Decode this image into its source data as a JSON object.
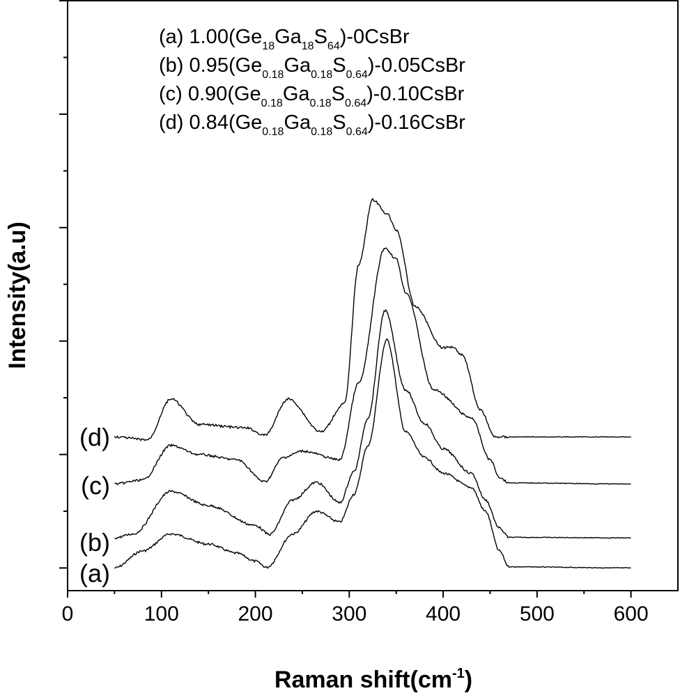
{
  "chart_data": {
    "type": "line",
    "title": "",
    "xlabel": "Raman shift(cm",
    "xlabel_sup": "-1",
    "xlabel_end": ")",
    "ylabel": "Intensity(a.u)",
    "xlim": [
      0,
      650
    ],
    "ylim": [
      -0.4,
      10.0
    ],
    "xticks": [
      0,
      100,
      200,
      300,
      400,
      500,
      600
    ],
    "xtick_labels": [
      "0",
      "100",
      "200",
      "300",
      "400",
      "500",
      "600"
    ],
    "yticks_major": [
      0,
      2,
      4,
      6,
      8,
      10
    ],
    "yticks_minor": [
      1,
      3,
      5,
      7,
      9
    ],
    "ytick_labels_shown": false,
    "grid": false,
    "legend_position": "top-center",
    "legend": [
      {
        "id": "a",
        "parts": [
          [
            "t",
            "(a) 1.00(Ge"
          ],
          [
            "s",
            "18"
          ],
          [
            "t",
            "Ga"
          ],
          [
            "s",
            "18"
          ],
          [
            "t",
            "S"
          ],
          [
            "s",
            "64"
          ],
          [
            "t",
            ")-0CsBr"
          ]
        ]
      },
      {
        "id": "b",
        "parts": [
          [
            "t",
            "(b) 0.95(Ge"
          ],
          [
            "s",
            "0.18"
          ],
          [
            "t",
            "Ga"
          ],
          [
            "s",
            "0.18"
          ],
          [
            "t",
            "S"
          ],
          [
            "s",
            "0.64"
          ],
          [
            "t",
            ")-0.05CsBr"
          ]
        ]
      },
      {
        "id": "c",
        "parts": [
          [
            "t",
            "(c) 0.90(Ge"
          ],
          [
            "s",
            "0.18"
          ],
          [
            "t",
            "Ga"
          ],
          [
            "s",
            "0.18"
          ],
          [
            "t",
            "S"
          ],
          [
            "s",
            "0.64"
          ],
          [
            "t",
            ")-0.10CsBr"
          ]
        ]
      },
      {
        "id": "d",
        "parts": [
          [
            "t",
            "(d) 0.84(Ge"
          ],
          [
            "s",
            "0.18"
          ],
          [
            "t",
            "Ga"
          ],
          [
            "s",
            "0.18"
          ],
          [
            "t",
            "S"
          ],
          [
            "s",
            "0.64"
          ],
          [
            "t",
            ")-0.16CsBr"
          ]
        ]
      }
    ],
    "series": [
      {
        "name": "(a)",
        "label_y": -0.1,
        "x": [
          50,
          80,
          110,
          150,
          180,
          200,
          212,
          240,
          265,
          290,
          305,
          320,
          340,
          360,
          380,
          400,
          430,
          445,
          460,
          470,
          600
        ],
        "y": [
          0,
          0.3,
          0.6,
          0.42,
          0.26,
          0.12,
          0.01,
          0.6,
          1.0,
          0.81,
          1.3,
          2.16,
          4.02,
          2.4,
          1.95,
          1.67,
          1.42,
          1.0,
          0.3,
          0.02,
          0
        ]
      },
      {
        "name": "(b)",
        "label_y": 0.45,
        "x": [
          50,
          70,
          110,
          150,
          200,
          215,
          240,
          265,
          290,
          305,
          320,
          338,
          360,
          380,
          400,
          430,
          445,
          460,
          470,
          600
        ],
        "y": [
          0.53,
          0.6,
          1.35,
          1.1,
          0.75,
          0.59,
          1.2,
          1.51,
          1.15,
          1.7,
          2.65,
          4.54,
          3.14,
          2.55,
          2.1,
          1.67,
          1.2,
          0.7,
          0.54,
          0.53
        ]
      },
      {
        "name": "(c)",
        "label_y": 1.45,
        "x": [
          50,
          80,
          110,
          140,
          180,
          210,
          230,
          250,
          290,
          310,
          338,
          350,
          360,
          390,
          430,
          450,
          460,
          470,
          600
        ],
        "y": [
          1.48,
          1.55,
          2.16,
          2.0,
          1.91,
          1.52,
          1.95,
          2.06,
          1.91,
          3.26,
          5.64,
          5.45,
          4.86,
          3.14,
          2.65,
          1.91,
          1.6,
          1.5,
          1.48
        ]
      },
      {
        "name": "(d)",
        "label_y": 2.3,
        "x": [
          50,
          85,
          110,
          140,
          190,
          210,
          235,
          270,
          295,
          310,
          325,
          340,
          350,
          370,
          400,
          410,
          420,
          440,
          455,
          600
        ],
        "y": [
          2.31,
          2.26,
          2.98,
          2.53,
          2.47,
          2.34,
          2.98,
          2.4,
          2.9,
          5.35,
          6.49,
          6.25,
          5.96,
          4.61,
          3.88,
          3.9,
          3.76,
          2.78,
          2.31,
          2.31
        ]
      }
    ]
  }
}
